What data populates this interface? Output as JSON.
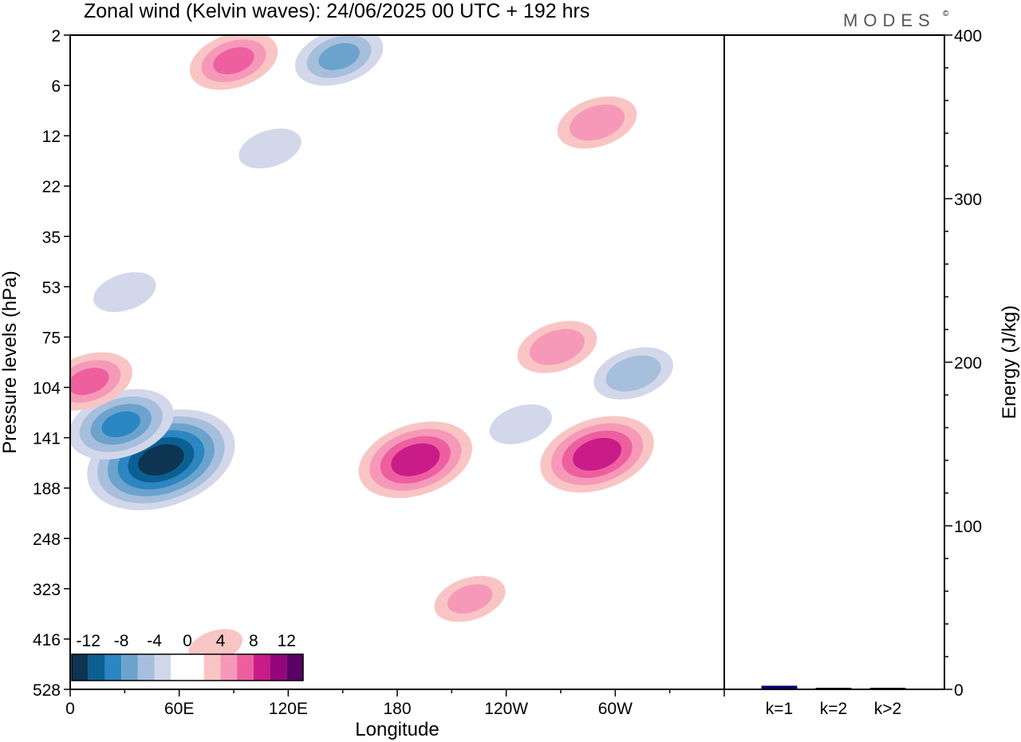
{
  "title": "Zonal wind (Kelvin waves):  24/06/2025  00 UTC  + 192 hrs",
  "logo": "MODES",
  "logo_mark": "©",
  "chart_data": [
    {
      "type": "heatmap",
      "title": "Zonal wind (Kelvin waves):  24/06/2025  00 UTC  + 192 hrs",
      "xlabel": "Longitude",
      "ylabel": "Pressure levels (hPa)",
      "x_ticks": [
        "0",
        "60E",
        "120E",
        "180",
        "120W",
        "60W"
      ],
      "x_tick_degrees": [
        0,
        60,
        120,
        180,
        240,
        300
      ],
      "xlim": [
        0,
        360
      ],
      "y_ticks": [
        "2",
        "6",
        "12",
        "22",
        "35",
        "53",
        "75",
        "104",
        "141",
        "188",
        "248",
        "323",
        "416",
        "528"
      ],
      "colorbar": {
        "labels": [
          "-12",
          "-8",
          "-4",
          "0",
          "4",
          "8",
          "12"
        ],
        "levels": [
          -14,
          -12,
          -10,
          -8,
          -6,
          -4,
          -2,
          0,
          2,
          4,
          6,
          8,
          10,
          12,
          14
        ],
        "colors": [
          "#0d3552",
          "#0b5f92",
          "#2b86c2",
          "#6ca3cc",
          "#a6bfdc",
          "#d3d7ea",
          "#ffffff",
          "#ffffff",
          "#f8c5c4",
          "#f699b8",
          "#ee5fa0",
          "#c91c88",
          "#93077a",
          "#5a0064"
        ]
      },
      "anomalies": [
        {
          "lon": 50,
          "level": 160,
          "value": -13
        },
        {
          "lon": 28,
          "level": 130,
          "value": -8
        },
        {
          "lon": 148,
          "level": 3.2,
          "value": -6
        },
        {
          "lon": 110,
          "level": 14,
          "value": -3
        },
        {
          "lon": 30,
          "level": 55,
          "value": -3
        },
        {
          "lon": 310,
          "level": 95,
          "value": -5
        },
        {
          "lon": 248,
          "level": 130,
          "value": -3
        },
        {
          "lon": 190,
          "level": 160,
          "value": 9
        },
        {
          "lon": 290,
          "level": 155,
          "value": 9
        },
        {
          "lon": 10,
          "level": 100,
          "value": 6
        },
        {
          "lon": 268,
          "level": 80,
          "value": 5
        },
        {
          "lon": 290,
          "level": 10,
          "value": 5
        },
        {
          "lon": 90,
          "level": 3.5,
          "value": 6
        },
        {
          "lon": 220,
          "level": 340,
          "value": 4
        },
        {
          "lon": 80,
          "level": 430,
          "value": 2
        }
      ]
    },
    {
      "type": "bar",
      "ylabel": "Energy (J/kg)",
      "categories": [
        "k=1",
        "k=2",
        "k>2"
      ],
      "values": [
        2,
        0.6,
        0.4
      ],
      "ylim": [
        0,
        400
      ],
      "y_ticks": [
        "0",
        "100",
        "200",
        "300",
        "400"
      ],
      "bar_color": "#000080"
    }
  ]
}
